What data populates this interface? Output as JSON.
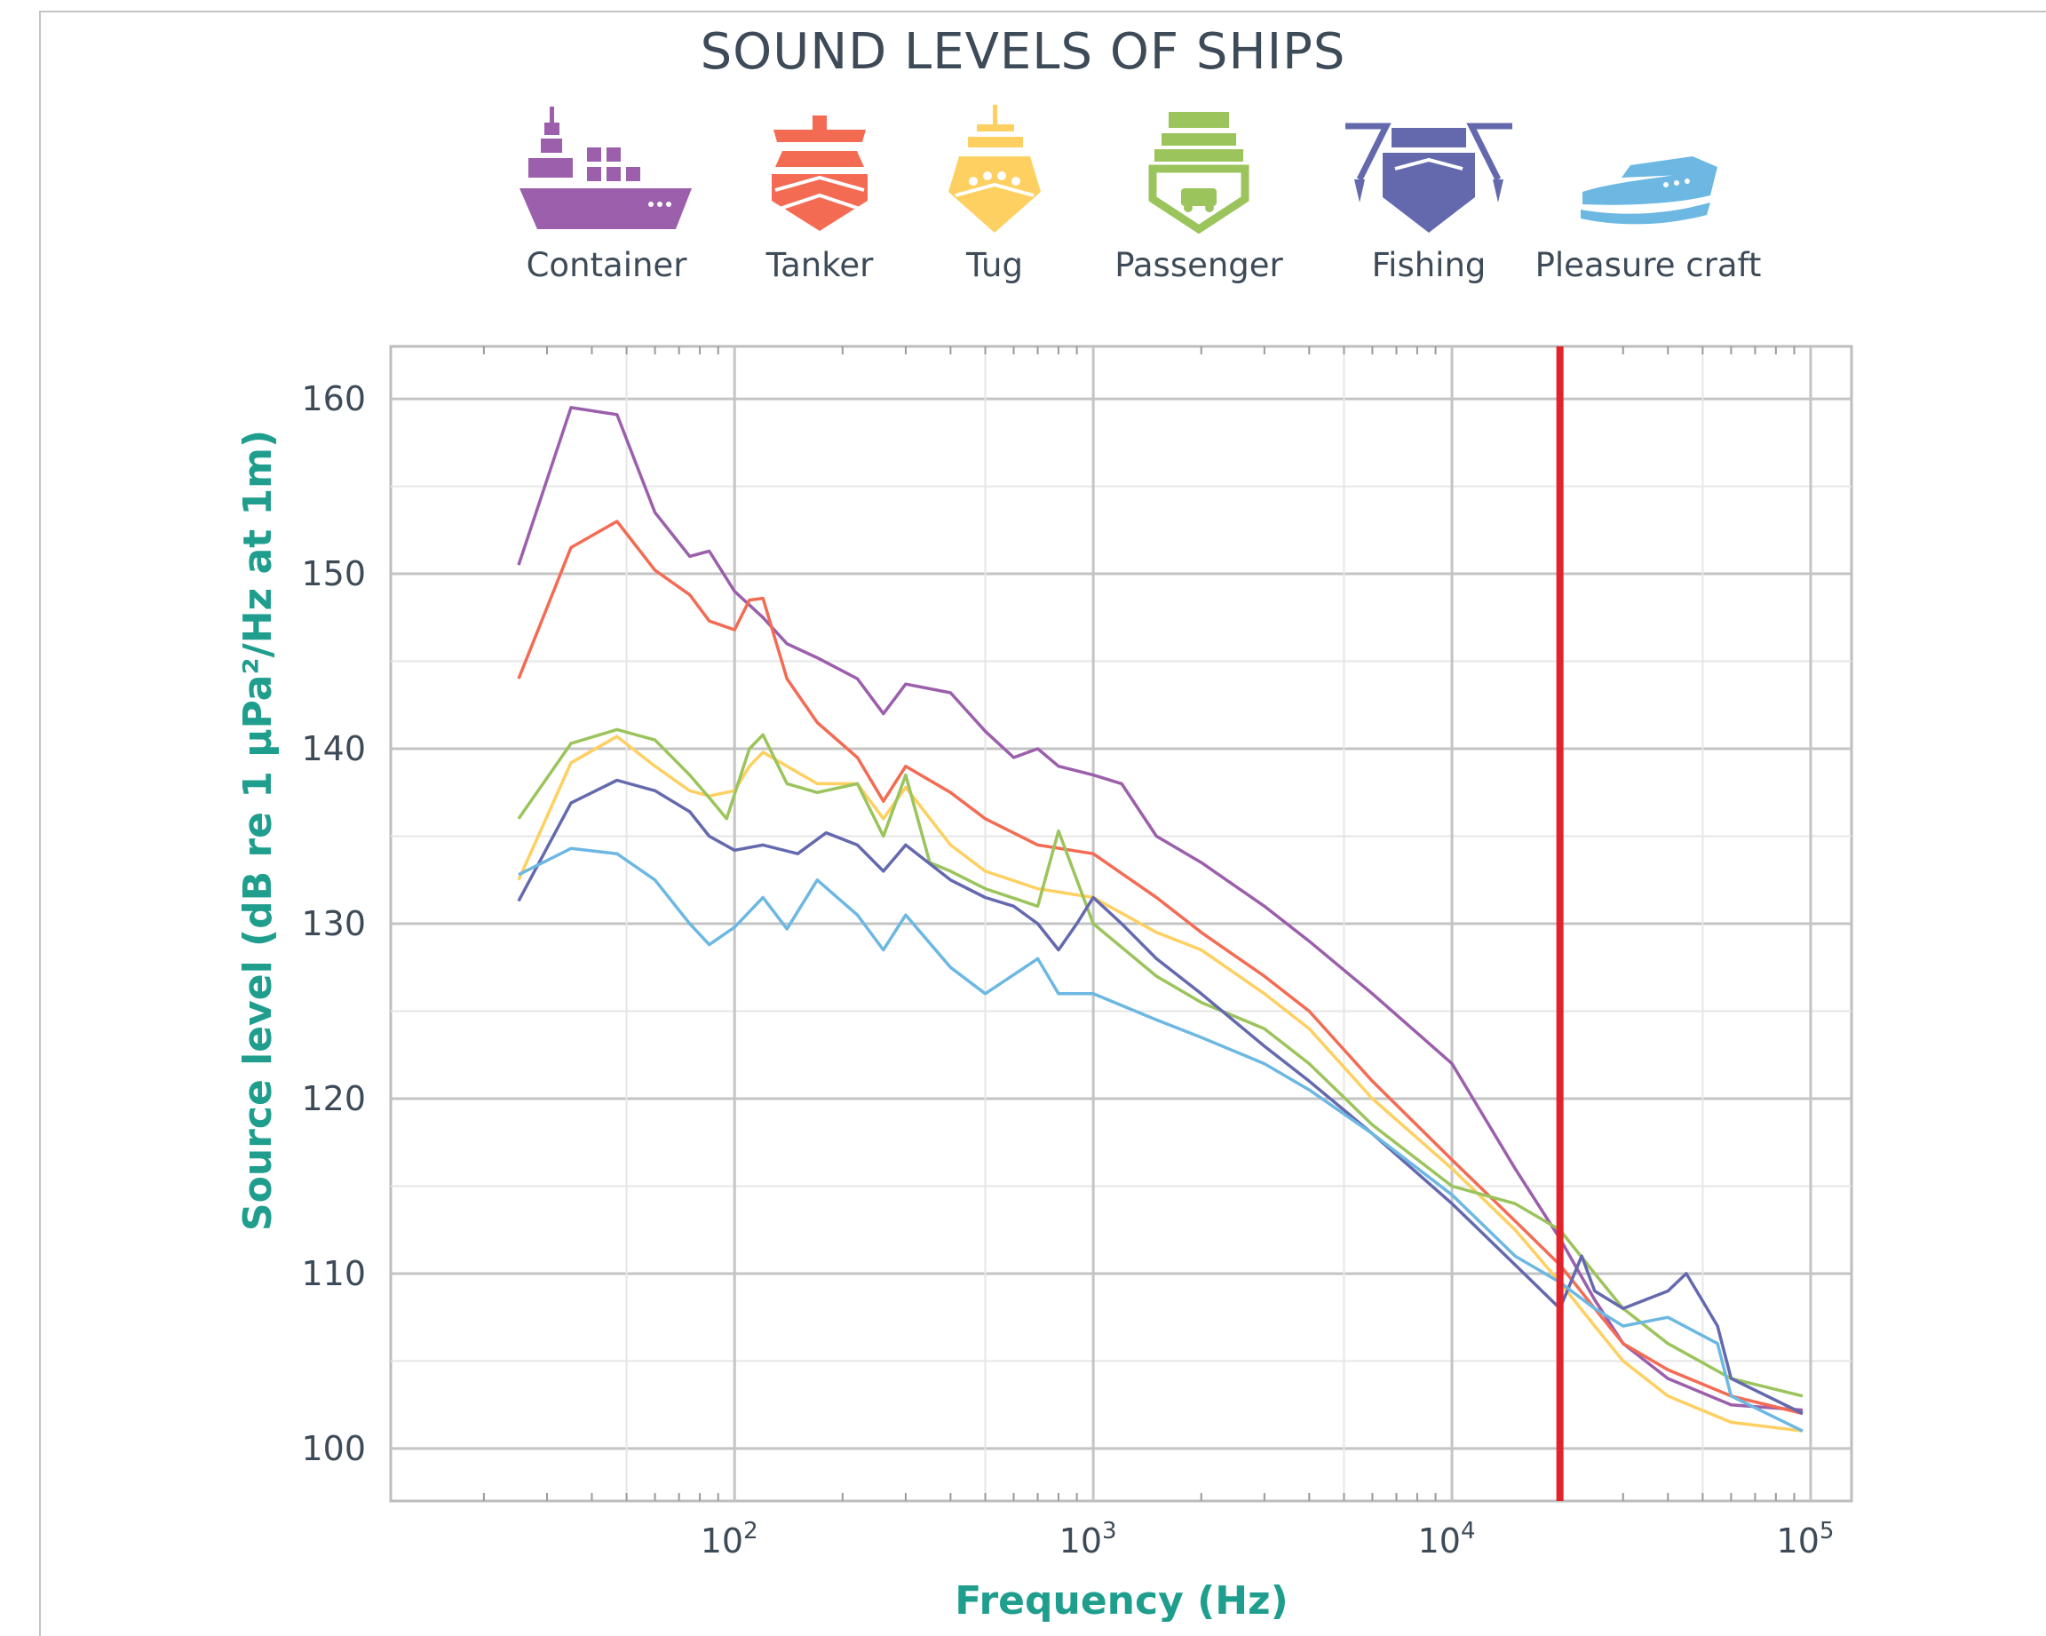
{
  "title": "SOUND LEVELS OF SHIPS",
  "legend": [
    {
      "label": "Container",
      "icon": "container-ship-icon",
      "color": "#9b5fab"
    },
    {
      "label": "Tanker",
      "icon": "tanker-ship-icon",
      "color": "#f46b53"
    },
    {
      "label": "Tug",
      "icon": "tug-boat-icon",
      "color": "#fdd061"
    },
    {
      "label": "Passenger",
      "icon": "passenger-ferry-icon",
      "color": "#9bc45c"
    },
    {
      "label": "Fishing",
      "icon": "fishing-boat-icon",
      "color": "#6469ae"
    },
    {
      "label": "Pleasure craft",
      "icon": "pleasure-craft-icon",
      "color": "#6cb8e2"
    }
  ],
  "chart_data": {
    "type": "line",
    "title": "SOUND LEVELS OF SHIPS",
    "xlabel": "Frequency (Hz)",
    "ylabel": "Source level (dB re 1 μPa²/Hz at 1m)",
    "x_scale": "log",
    "xlim": [
      11,
      130000
    ],
    "ylim": [
      97,
      163
    ],
    "x_ticks": [
      100,
      1000,
      10000,
      100000
    ],
    "x_tick_labels": [
      "10",
      "10",
      "10",
      "10"
    ],
    "x_tick_exponents": [
      "2",
      "3",
      "4",
      "5"
    ],
    "y_ticks": [
      100,
      110,
      120,
      130,
      140,
      150,
      160
    ],
    "y_tick_labels": [
      "100",
      "110",
      "120",
      "130",
      "140",
      "150",
      "160"
    ],
    "grid": true,
    "marker_line": {
      "x": 20000,
      "color": "#e3232b"
    },
    "series": [
      {
        "name": "Container",
        "color": "#9b5fab",
        "points": [
          [
            25,
            150.5
          ],
          [
            35,
            159.5
          ],
          [
            47,
            159.1
          ],
          [
            60,
            153.5
          ],
          [
            75,
            151
          ],
          [
            85,
            151.3
          ],
          [
            100,
            149
          ],
          [
            120,
            147.5
          ],
          [
            140,
            146
          ],
          [
            170,
            145.2
          ],
          [
            220,
            144
          ],
          [
            260,
            142
          ],
          [
            300,
            143.7
          ],
          [
            400,
            143.2
          ],
          [
            500,
            141
          ],
          [
            600,
            139.5
          ],
          [
            700,
            140
          ],
          [
            800,
            139
          ],
          [
            1000,
            138.5
          ],
          [
            1200,
            138
          ],
          [
            1500,
            135
          ],
          [
            2000,
            133.5
          ],
          [
            3000,
            131
          ],
          [
            4000,
            129
          ],
          [
            6000,
            126
          ],
          [
            10000,
            122
          ],
          [
            15000,
            116
          ],
          [
            20000,
            112
          ],
          [
            25000,
            108.5
          ],
          [
            30000,
            106
          ],
          [
            40000,
            104
          ],
          [
            60000,
            102.5
          ],
          [
            95000,
            102.2
          ]
        ]
      },
      {
        "name": "Tanker",
        "color": "#f46b53",
        "points": [
          [
            25,
            144
          ],
          [
            35,
            151.5
          ],
          [
            47,
            153
          ],
          [
            60,
            150.2
          ],
          [
            75,
            148.8
          ],
          [
            85,
            147.3
          ],
          [
            100,
            146.8
          ],
          [
            110,
            148.5
          ],
          [
            120,
            148.6
          ],
          [
            140,
            144
          ],
          [
            170,
            141.5
          ],
          [
            220,
            139.5
          ],
          [
            260,
            137
          ],
          [
            300,
            139
          ],
          [
            400,
            137.5
          ],
          [
            500,
            136
          ],
          [
            700,
            134.5
          ],
          [
            1000,
            134
          ],
          [
            1500,
            131.5
          ],
          [
            2000,
            129.5
          ],
          [
            3000,
            127
          ],
          [
            4000,
            125
          ],
          [
            6000,
            121
          ],
          [
            10000,
            116.5
          ],
          [
            15000,
            113
          ],
          [
            20000,
            110.5
          ],
          [
            25000,
            108
          ],
          [
            30000,
            106
          ],
          [
            40000,
            104.5
          ],
          [
            60000,
            103
          ],
          [
            95000,
            102
          ]
        ]
      },
      {
        "name": "Tug",
        "color": "#fdd061",
        "points": [
          [
            25,
            132.5
          ],
          [
            35,
            139.2
          ],
          [
            47,
            140.7
          ],
          [
            60,
            139
          ],
          [
            75,
            137.6
          ],
          [
            85,
            137.3
          ],
          [
            100,
            137.6
          ],
          [
            110,
            139
          ],
          [
            120,
            139.8
          ],
          [
            140,
            139
          ],
          [
            170,
            138
          ],
          [
            220,
            138
          ],
          [
            260,
            136
          ],
          [
            300,
            137.8
          ],
          [
            400,
            134.5
          ],
          [
            500,
            133
          ],
          [
            700,
            132
          ],
          [
            1000,
            131.5
          ],
          [
            1500,
            129.5
          ],
          [
            2000,
            128.5
          ],
          [
            3000,
            126
          ],
          [
            4000,
            124
          ],
          [
            6000,
            120
          ],
          [
            10000,
            116
          ],
          [
            15000,
            112.5
          ],
          [
            20000,
            109.5
          ],
          [
            25000,
            107
          ],
          [
            30000,
            105
          ],
          [
            40000,
            103
          ],
          [
            60000,
            101.5
          ],
          [
            95000,
            101
          ]
        ]
      },
      {
        "name": "Passenger",
        "color": "#9bc45c",
        "points": [
          [
            25,
            136
          ],
          [
            35,
            140.3
          ],
          [
            47,
            141.1
          ],
          [
            60,
            140.5
          ],
          [
            75,
            138.5
          ],
          [
            85,
            137.2
          ],
          [
            95,
            136
          ],
          [
            110,
            140
          ],
          [
            120,
            140.8
          ],
          [
            140,
            138
          ],
          [
            170,
            137.5
          ],
          [
            220,
            138
          ],
          [
            260,
            135
          ],
          [
            300,
            138.5
          ],
          [
            350,
            133.5
          ],
          [
            400,
            133
          ],
          [
            500,
            132
          ],
          [
            700,
            131
          ],
          [
            800,
            135.3
          ],
          [
            1000,
            130
          ],
          [
            1500,
            127
          ],
          [
            2000,
            125.5
          ],
          [
            3000,
            124
          ],
          [
            4000,
            122
          ],
          [
            6000,
            118.5
          ],
          [
            10000,
            115
          ],
          [
            15000,
            114
          ],
          [
            20000,
            112.5
          ],
          [
            25000,
            110
          ],
          [
            30000,
            108
          ],
          [
            40000,
            106
          ],
          [
            60000,
            104
          ],
          [
            95000,
            103
          ]
        ]
      },
      {
        "name": "Fishing",
        "color": "#6469ae",
        "points": [
          [
            25,
            131.3
          ],
          [
            35,
            136.9
          ],
          [
            47,
            138.2
          ],
          [
            60,
            137.6
          ],
          [
            75,
            136.4
          ],
          [
            85,
            135
          ],
          [
            100,
            134.2
          ],
          [
            120,
            134.5
          ],
          [
            150,
            134
          ],
          [
            180,
            135.2
          ],
          [
            220,
            134.5
          ],
          [
            260,
            133
          ],
          [
            300,
            134.5
          ],
          [
            400,
            132.5
          ],
          [
            500,
            131.5
          ],
          [
            600,
            131
          ],
          [
            700,
            130
          ],
          [
            800,
            128.5
          ],
          [
            900,
            130
          ],
          [
            1000,
            131.5
          ],
          [
            1200,
            130
          ],
          [
            1500,
            128
          ],
          [
            2000,
            126
          ],
          [
            3000,
            123
          ],
          [
            4000,
            121
          ],
          [
            6000,
            118
          ],
          [
            10000,
            114
          ],
          [
            15000,
            110.5
          ],
          [
            20000,
            108
          ],
          [
            23000,
            111
          ],
          [
            25000,
            109
          ],
          [
            30000,
            108
          ],
          [
            40000,
            109
          ],
          [
            45000,
            110
          ],
          [
            55000,
            107
          ],
          [
            60000,
            104
          ],
          [
            95000,
            102
          ]
        ]
      },
      {
        "name": "Pleasure craft",
        "color": "#6cb8e2",
        "points": [
          [
            25,
            132.8
          ],
          [
            35,
            134.3
          ],
          [
            47,
            134
          ],
          [
            60,
            132.5
          ],
          [
            75,
            130
          ],
          [
            85,
            128.8
          ],
          [
            100,
            129.8
          ],
          [
            120,
            131.5
          ],
          [
            140,
            129.7
          ],
          [
            170,
            132.5
          ],
          [
            220,
            130.5
          ],
          [
            260,
            128.5
          ],
          [
            300,
            130.5
          ],
          [
            400,
            127.5
          ],
          [
            500,
            126
          ],
          [
            700,
            128
          ],
          [
            800,
            126
          ],
          [
            1000,
            126
          ],
          [
            1500,
            124.5
          ],
          [
            2000,
            123.5
          ],
          [
            3000,
            122
          ],
          [
            4000,
            120.5
          ],
          [
            6000,
            118
          ],
          [
            10000,
            114.5
          ],
          [
            15000,
            111
          ],
          [
            20000,
            109.5
          ],
          [
            25000,
            108
          ],
          [
            30000,
            107
          ],
          [
            40000,
            107.5
          ],
          [
            55000,
            106
          ],
          [
            60000,
            103
          ],
          [
            95000,
            101
          ]
        ]
      }
    ]
  }
}
